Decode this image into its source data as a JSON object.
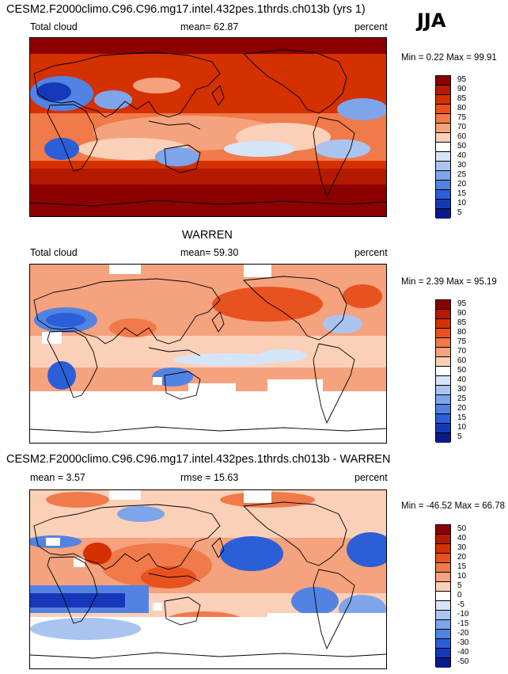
{
  "season": "JJA",
  "panels": [
    {
      "title": "CESM2.F2000climo.C96.C96.mg17.intel.432pes.1thrds.ch013b (yrs 1)",
      "left_label": "Total cloud",
      "center_label": "mean=  62.87",
      "right_label": "percent",
      "minmax": "Min =   0.22 Max =  99.91",
      "colorbar": {
        "levels": [
          "95",
          "90",
          "85",
          "80",
          "75",
          "70",
          "60",
          "50",
          "40",
          "30",
          "25",
          "20",
          "15",
          "10",
          "5"
        ],
        "colors": [
          "#8b0000",
          "#b41a00",
          "#d43000",
          "#e8521e",
          "#f07a4a",
          "#f5a27e",
          "#fad0b8",
          "#ffffff",
          "#d6e4f8",
          "#aac4f0",
          "#7ea4ea",
          "#5283e2",
          "#2b5fd8",
          "#1638b8",
          "#0a1a8c"
        ]
      }
    },
    {
      "title": "WARREN",
      "left_label": "Total cloud",
      "center_label": "mean=  59.30",
      "right_label": "percent",
      "minmax": "Min =   2.39 Max =  95.19",
      "colorbar": {
        "levels": [
          "95",
          "90",
          "85",
          "80",
          "75",
          "70",
          "60",
          "50",
          "40",
          "30",
          "25",
          "20",
          "15",
          "10",
          "5"
        ],
        "colors": [
          "#8b0000",
          "#b41a00",
          "#d43000",
          "#e8521e",
          "#f07a4a",
          "#f5a27e",
          "#fad0b8",
          "#ffffff",
          "#d6e4f8",
          "#aac4f0",
          "#7ea4ea",
          "#5283e2",
          "#2b5fd8",
          "#1638b8",
          "#0a1a8c"
        ]
      }
    },
    {
      "title": "CESM2.F2000climo.C96.C96.mg17.intel.432pes.1thrds.ch013b - WARREN",
      "left_label": "mean =   3.57",
      "center_label": "rmse =  15.63",
      "right_label": "percent",
      "minmax": "Min = -46.52 Max =  66.78",
      "colorbar": {
        "levels": [
          "50",
          "40",
          "30",
          "20",
          "15",
          "10",
          "5",
          "0",
          "-5",
          "-10",
          "-15",
          "-20",
          "-30",
          "-40",
          "-50"
        ],
        "colors": [
          "#8b0000",
          "#b41a00",
          "#d43000",
          "#e8521e",
          "#f07a4a",
          "#f5a27e",
          "#fad0b8",
          "#ffffff",
          "#d6e4f8",
          "#aac4f0",
          "#7ea4ea",
          "#5283e2",
          "#2b5fd8",
          "#1638b8",
          "#0a1a8c"
        ]
      }
    }
  ]
}
